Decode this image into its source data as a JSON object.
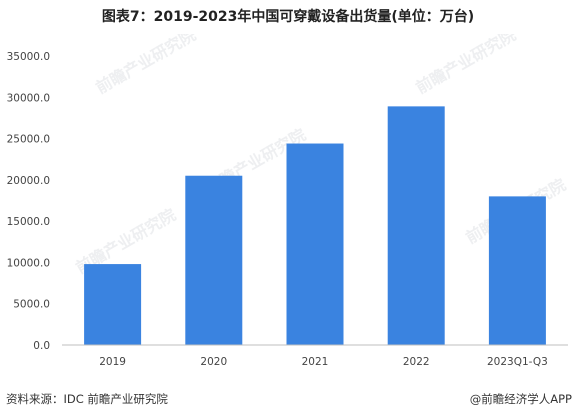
{
  "title": "图表7：2019-2023年中国可穿戴设备出货量(单位：万台)",
  "source": "资料来源：IDC 前瞻产业研究院",
  "brand": "@前瞻经济学人APP",
  "watermark": "前瞻产业研究院",
  "colors": {
    "bar": "#3a83e0",
    "axis": "#bfbfbf",
    "grid": "#e6e6e6"
  },
  "chart_data": {
    "type": "bar",
    "title": "图表7：2019-2023年中国可穿戴设备出货量(单位：万台)",
    "categories": [
      "2019",
      "2020",
      "2021",
      "2022",
      "2023Q1-Q3"
    ],
    "values": [
      9800,
      20500,
      24400,
      28900,
      18000
    ],
    "ylim": [
      0,
      35000
    ],
    "yticks": [
      "0.0",
      "5000.0",
      "10000.0",
      "15000.0",
      "20000.0",
      "25000.0",
      "30000.0",
      "35000.0"
    ],
    "ytick_values": [
      0,
      5000,
      10000,
      15000,
      20000,
      25000,
      30000,
      35000
    ],
    "grid": false,
    "legend": "none"
  }
}
